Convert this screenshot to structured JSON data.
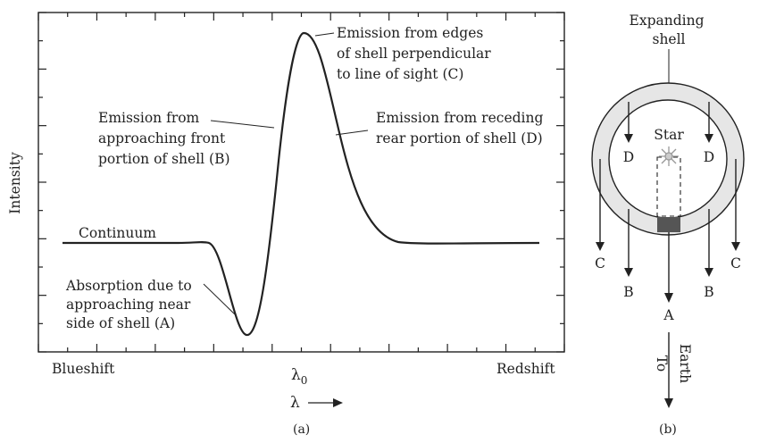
{
  "panel_a": {
    "ylabel": "Intensity",
    "x_left_label": "Blueshift",
    "x_center_label": "λ",
    "x_center_subscript": "0",
    "x_right_label": "Redshift",
    "lambda_arrow_label": "λ",
    "caption": "(a)",
    "continuum_label": "Continuum",
    "annotation_A": [
      "Absorption due to",
      "approaching near",
      "side of shell (A)"
    ],
    "annotation_B": [
      "Emission from",
      "approaching front",
      "portion of shell (B)"
    ],
    "annotation_C": [
      "Emission from edges",
      "of shell perpendicular",
      "to line of sight (C)"
    ],
    "annotation_D": [
      "Emission from receding",
      "rear portion of shell (D)"
    ]
  },
  "panel_b": {
    "title": [
      "Expanding",
      "shell"
    ],
    "star_label": "Star",
    "label_D_left": "D",
    "label_D_right": "D",
    "label_C_left": "C",
    "label_C_right": "C",
    "label_B_left": "B",
    "label_B_right": "B",
    "label_A": "A",
    "to_earth_to": "To",
    "to_earth_earth": "Earth",
    "caption": "(b)"
  },
  "colors": {
    "line": "#222222",
    "shell_fill": "#e6e6e6",
    "absorption_region": "#555555",
    "star": "#999999"
  }
}
